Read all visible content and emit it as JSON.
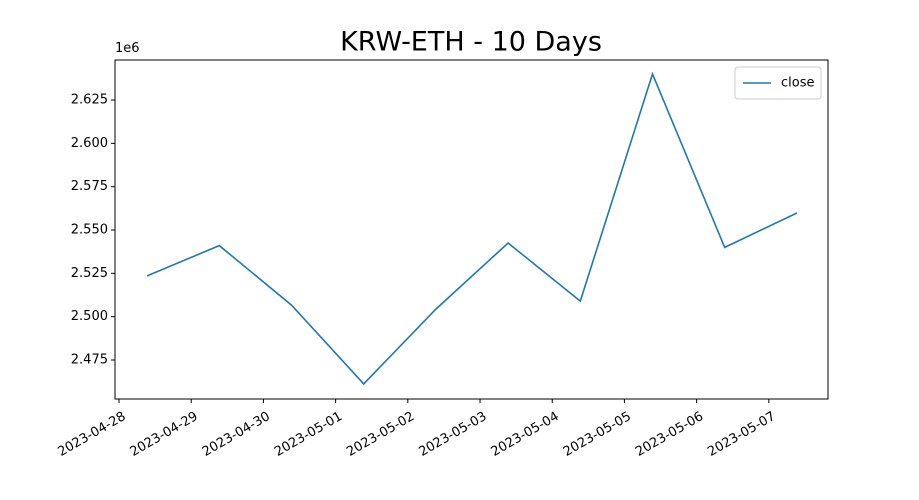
{
  "chart_data": {
    "type": "line",
    "title": "KRW-ETH - 10 Days",
    "y_offset_label": "1e6",
    "x": [
      "2023-04-28T09:20",
      "2023-04-29T09:20",
      "2023-04-30T09:20",
      "2023-05-01T09:20",
      "2023-05-02T09:20",
      "2023-05-03T09:20",
      "2023-05-04T09:20",
      "2023-05-05T09:20",
      "2023-05-06T09:20",
      "2023-05-07T09:20"
    ],
    "series": [
      {
        "name": "close",
        "color": "#1f77b4",
        "values": [
          2523500,
          2541000,
          2506700,
          2461200,
          2504400,
          2542500,
          2509000,
          2640000,
          2540000,
          2559800
        ]
      }
    ],
    "xlim": [
      "2023-04-27T22:40",
      "2023-05-07T19:40"
    ],
    "xticks": [
      "2023-04-28",
      "2023-04-29",
      "2023-04-30",
      "2023-05-01",
      "2023-05-02",
      "2023-05-03",
      "2023-05-04",
      "2023-05-05",
      "2023-05-06",
      "2023-05-07"
    ],
    "ylim": [
      2452500,
      2648100
    ],
    "yticks": [
      {
        "value": 2475000,
        "label": "2.475"
      },
      {
        "value": 2500000,
        "label": "2.500"
      },
      {
        "value": 2525000,
        "label": "2.525"
      },
      {
        "value": 2550000,
        "label": "2.550"
      },
      {
        "value": 2575000,
        "label": "2.575"
      },
      {
        "value": 2600000,
        "label": "2.600"
      },
      {
        "value": 2625000,
        "label": "2.625"
      }
    ],
    "legend": "upper right"
  }
}
